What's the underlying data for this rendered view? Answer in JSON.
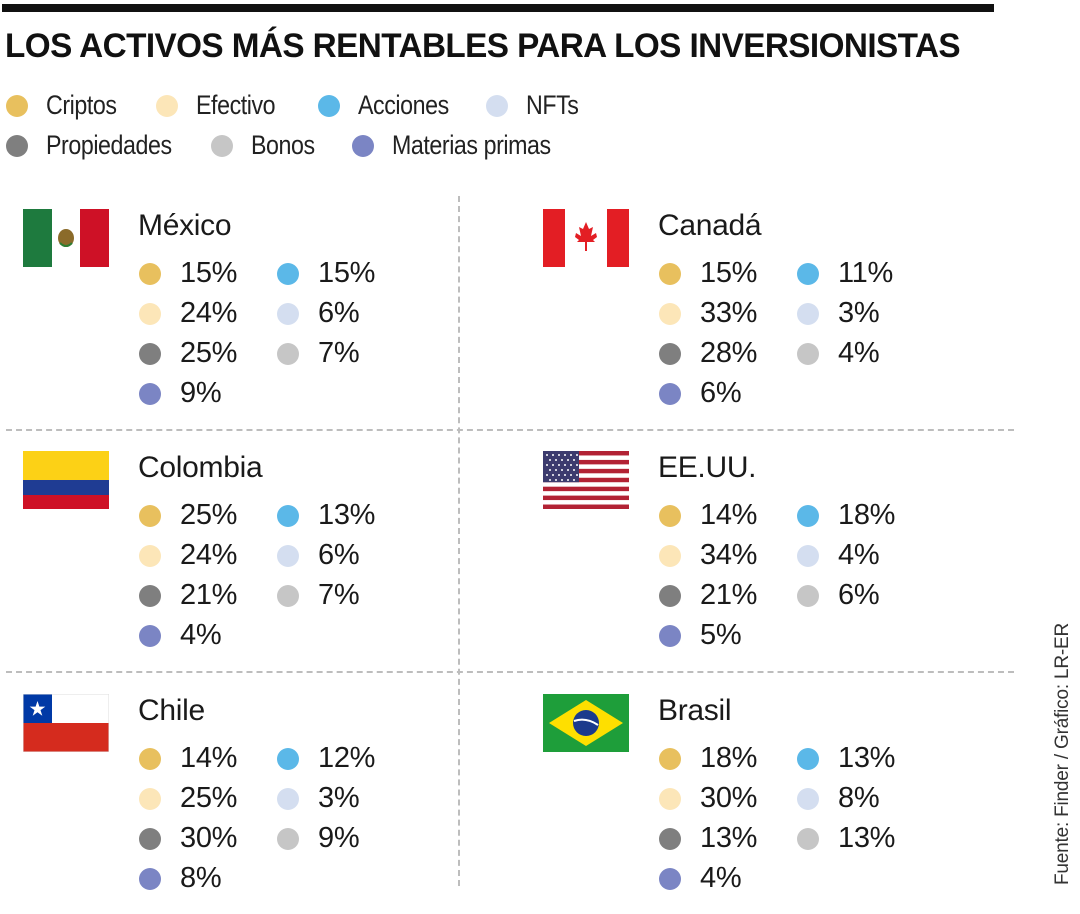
{
  "title": "LOS ACTIVOS MÁS RENTABLES PARA LOS INVERSIONISTAS",
  "legend": [
    {
      "label": "Criptos",
      "color": "#E8C05E"
    },
    {
      "label": "Efectivo",
      "color": "#FCE6B8"
    },
    {
      "label": "Acciones",
      "color": "#5BB8E8"
    },
    {
      "label": "NFTs",
      "color": "#D4DEF0"
    },
    {
      "label": "Propiedades",
      "color": "#7F7F7F"
    },
    {
      "label": "Bonos",
      "color": "#C6C6C6"
    },
    {
      "label": "Materias primas",
      "color": "#7B85C4"
    }
  ],
  "countries": [
    {
      "name": "México",
      "flag": "mexico-flag",
      "criptos": "15%",
      "efectivo": "24%",
      "propiedades": "25%",
      "materias_primas": "9%",
      "acciones": "15%",
      "nfts": "6%",
      "bonos": "7%"
    },
    {
      "name": "Canadá",
      "flag": "canada-flag",
      "criptos": "15%",
      "efectivo": "33%",
      "propiedades": "28%",
      "materias_primas": "6%",
      "acciones": "11%",
      "nfts": "3%",
      "bonos": "4%"
    },
    {
      "name": "Colombia",
      "flag": "colombia-flag",
      "criptos": "25%",
      "efectivo": "24%",
      "propiedades": "21%",
      "materias_primas": "4%",
      "acciones": "13%",
      "nfts": "6%",
      "bonos": "7%"
    },
    {
      "name": "EE.UU.",
      "flag": "usa-flag",
      "criptos": "14%",
      "efectivo": "34%",
      "propiedades": "21%",
      "materias_primas": "5%",
      "acciones": "18%",
      "nfts": "4%",
      "bonos": "6%"
    },
    {
      "name": "Chile",
      "flag": "chile-flag",
      "criptos": "14%",
      "efectivo": "25%",
      "propiedades": "30%",
      "materias_primas": "8%",
      "acciones": "12%",
      "nfts": "3%",
      "bonos": "9%"
    },
    {
      "name": "Brasil",
      "flag": "brazil-flag",
      "criptos": "18%",
      "efectivo": "30%",
      "propiedades": "13%",
      "materias_primas": "4%",
      "acciones": "13%",
      "nfts": "8%",
      "bonos": "13%"
    }
  ],
  "source": "Fuente: Finder / Gráfico: LR-ER"
}
